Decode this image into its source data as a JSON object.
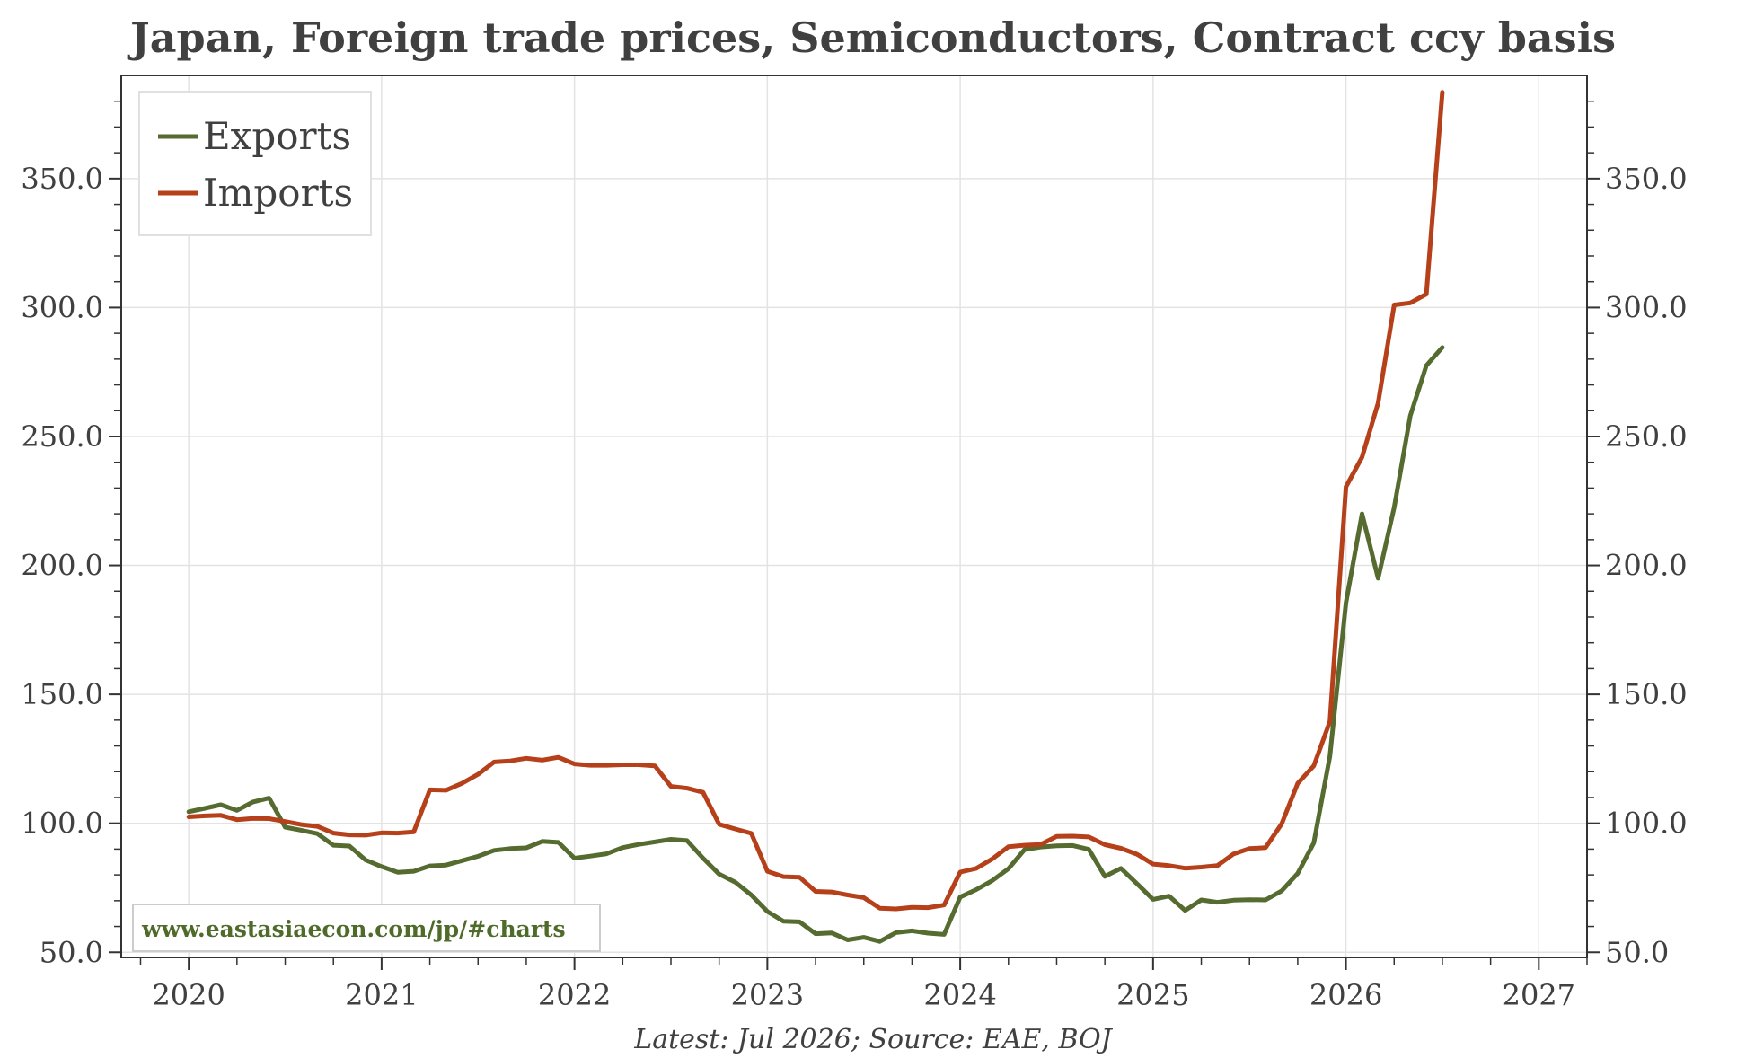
{
  "chart_data": {
    "type": "line",
    "title": "Japan, Foreign trade prices, Semiconductors, Contract ccy basis",
    "xlabel": "",
    "ylabel": "",
    "xlim": [
      2019.65,
      2027.25
    ],
    "ylim": [
      48,
      390
    ],
    "x_ticks": [
      "2020",
      "2021",
      "2022",
      "2023",
      "2024",
      "2025",
      "2026",
      "2027"
    ],
    "y_ticks": [
      "50.0",
      "100.0",
      "150.0",
      "200.0",
      "250.0",
      "300.0",
      "350.0"
    ],
    "grid": true,
    "legend_position": "top-left",
    "start": "Jan 2020",
    "frequency": "monthly",
    "series": [
      {
        "name": "Exports",
        "color": "#556b2f",
        "values": [
          104.5,
          105.8,
          107.2,
          105.0,
          108.3,
          109.8,
          98.5,
          97.3,
          96.0,
          91.5,
          91.2,
          85.8,
          83.2,
          81.0,
          81.4,
          83.5,
          83.8,
          85.5,
          87.2,
          89.5,
          90.2,
          90.5,
          93.0,
          92.6,
          86.5,
          87.3,
          88.2,
          90.6,
          91.8,
          92.8,
          93.8,
          93.3,
          86.5,
          80.3,
          77.2,
          72.2,
          65.8,
          62.0,
          61.8,
          57.2,
          57.5,
          54.8,
          55.8,
          54.2,
          57.6,
          58.3,
          57.4,
          56.9,
          71.4,
          74.3,
          77.8,
          82.4,
          89.8,
          90.8,
          91.3,
          91.4,
          89.9,
          79.4,
          82.5,
          76.6,
          70.5,
          71.8,
          66.2,
          70.3,
          69.4,
          70.2,
          70.4,
          70.3,
          73.8,
          80.6,
          92.4,
          126.0,
          185.5,
          220.0,
          195.0,
          222.5,
          258.0,
          277.5,
          284.5
        ]
      },
      {
        "name": "Imports",
        "color": "#b5401a",
        "values": [
          102.5,
          102.9,
          103.1,
          101.4,
          101.9,
          101.8,
          100.7,
          99.5,
          98.8,
          96.2,
          95.5,
          95.4,
          96.3,
          96.2,
          96.7,
          113.0,
          112.8,
          115.5,
          119.0,
          123.8,
          124.2,
          125.2,
          124.5,
          125.6,
          123.0,
          122.5,
          122.5,
          122.7,
          122.7,
          122.3,
          114.3,
          113.6,
          112.0,
          99.6,
          97.8,
          96.1,
          81.4,
          79.3,
          79.1,
          73.6,
          73.4,
          72.2,
          71.2,
          67.1,
          66.8,
          67.4,
          67.3,
          68.3,
          81.1,
          82.5,
          86.2,
          90.9,
          91.5,
          91.8,
          94.9,
          95.0,
          94.7,
          91.7,
          90.3,
          88.0,
          84.2,
          83.6,
          82.6,
          83.0,
          83.6,
          88.1,
          90.2,
          90.6,
          99.8,
          115.5,
          122.3,
          139.5,
          230.5,
          242.0,
          263.0,
          301.0,
          301.8,
          305.2,
          383.5
        ]
      }
    ]
  },
  "source": "Latest: Jul 2026; Source: EAE, BOJ",
  "watermark": "www.eastasiaecon.com/jp/#charts"
}
